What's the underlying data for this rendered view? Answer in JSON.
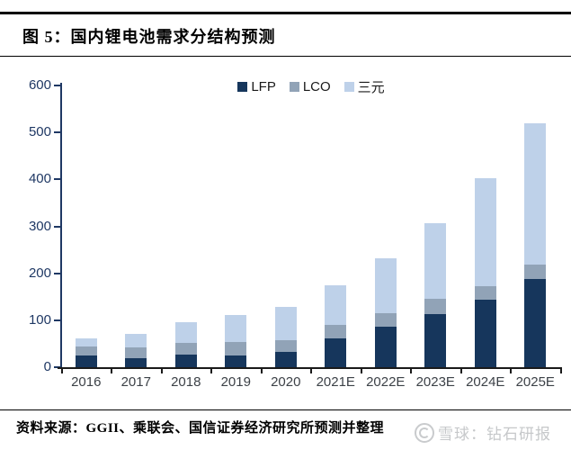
{
  "header": {
    "title": "图 5：国内锂电池需求分结构预测"
  },
  "chart_data": {
    "type": "bar",
    "stacked": true,
    "title": "国内锂电池需求分结构预测",
    "categories": [
      "2016",
      "2017",
      "2018",
      "2019",
      "2020",
      "2021E",
      "2022E",
      "2023E",
      "2024E",
      "2025E"
    ],
    "series": [
      {
        "name": "LFP",
        "color": "#16365c",
        "values": [
          24,
          19,
          26,
          25,
          33,
          61,
          86,
          113,
          143,
          187
        ]
      },
      {
        "name": "LCO",
        "color": "#91a3b7",
        "values": [
          20,
          23,
          25,
          29,
          25,
          30,
          30,
          32,
          29,
          32
        ]
      },
      {
        "name": "三元",
        "color": "#bed1e9",
        "values": [
          17,
          29,
          45,
          57,
          71,
          84,
          116,
          162,
          230,
          301
        ]
      }
    ],
    "totals": [
      61,
      71,
      96,
      111,
      129,
      175,
      232,
      307,
      402,
      520
    ],
    "ylim": [
      0,
      600
    ],
    "ytick_interval": 100,
    "yticks": [
      "0",
      "100",
      "200",
      "300",
      "400",
      "500",
      "600"
    ],
    "xlabel": "",
    "ylabel": "",
    "grid": false,
    "legend_position": "top-center",
    "axis_color": "#1f3864",
    "x_axis_color": "#1a1a1a"
  },
  "footer": {
    "source_text": "资料来源：GGII、乘联会、国信证券经济研究所预测并整理"
  },
  "watermark": {
    "logo": "xueqiu-logo",
    "text": "雪球：钻石研报"
  }
}
